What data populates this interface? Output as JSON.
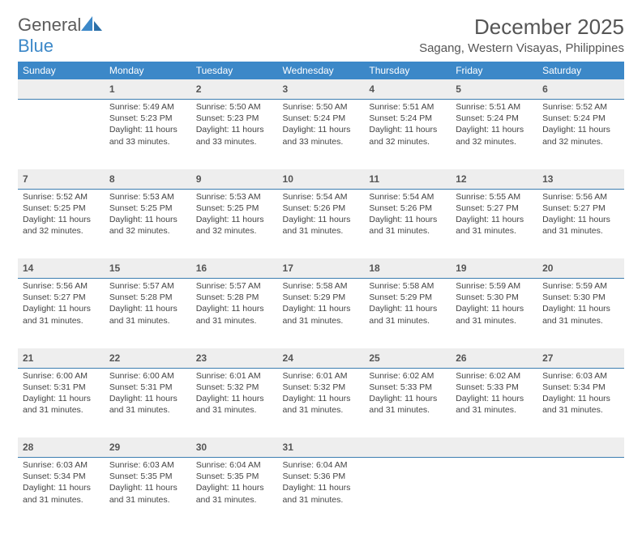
{
  "brand": {
    "part1": "General",
    "part2": "Blue"
  },
  "title": "December 2025",
  "location": "Sagang, Western Visayas, Philippines",
  "colors": {
    "header_bg": "#3c88c8",
    "header_text": "#ffffff",
    "daynum_bg": "#eeeeee",
    "daynum_border": "#3c7db0",
    "body_text": "#444444",
    "title_text": "#555555",
    "page_bg": "#ffffff"
  },
  "weekdays": [
    "Sunday",
    "Monday",
    "Tuesday",
    "Wednesday",
    "Thursday",
    "Friday",
    "Saturday"
  ],
  "weeks": [
    [
      null,
      {
        "n": "1",
        "sr": "Sunrise: 5:49 AM",
        "ss": "Sunset: 5:23 PM",
        "d1": "Daylight: 11 hours",
        "d2": "and 33 minutes."
      },
      {
        "n": "2",
        "sr": "Sunrise: 5:50 AM",
        "ss": "Sunset: 5:23 PM",
        "d1": "Daylight: 11 hours",
        "d2": "and 33 minutes."
      },
      {
        "n": "3",
        "sr": "Sunrise: 5:50 AM",
        "ss": "Sunset: 5:24 PM",
        "d1": "Daylight: 11 hours",
        "d2": "and 33 minutes."
      },
      {
        "n": "4",
        "sr": "Sunrise: 5:51 AM",
        "ss": "Sunset: 5:24 PM",
        "d1": "Daylight: 11 hours",
        "d2": "and 32 minutes."
      },
      {
        "n": "5",
        "sr": "Sunrise: 5:51 AM",
        "ss": "Sunset: 5:24 PM",
        "d1": "Daylight: 11 hours",
        "d2": "and 32 minutes."
      },
      {
        "n": "6",
        "sr": "Sunrise: 5:52 AM",
        "ss": "Sunset: 5:24 PM",
        "d1": "Daylight: 11 hours",
        "d2": "and 32 minutes."
      }
    ],
    [
      {
        "n": "7",
        "sr": "Sunrise: 5:52 AM",
        "ss": "Sunset: 5:25 PM",
        "d1": "Daylight: 11 hours",
        "d2": "and 32 minutes."
      },
      {
        "n": "8",
        "sr": "Sunrise: 5:53 AM",
        "ss": "Sunset: 5:25 PM",
        "d1": "Daylight: 11 hours",
        "d2": "and 32 minutes."
      },
      {
        "n": "9",
        "sr": "Sunrise: 5:53 AM",
        "ss": "Sunset: 5:25 PM",
        "d1": "Daylight: 11 hours",
        "d2": "and 32 minutes."
      },
      {
        "n": "10",
        "sr": "Sunrise: 5:54 AM",
        "ss": "Sunset: 5:26 PM",
        "d1": "Daylight: 11 hours",
        "d2": "and 31 minutes."
      },
      {
        "n": "11",
        "sr": "Sunrise: 5:54 AM",
        "ss": "Sunset: 5:26 PM",
        "d1": "Daylight: 11 hours",
        "d2": "and 31 minutes."
      },
      {
        "n": "12",
        "sr": "Sunrise: 5:55 AM",
        "ss": "Sunset: 5:27 PM",
        "d1": "Daylight: 11 hours",
        "d2": "and 31 minutes."
      },
      {
        "n": "13",
        "sr": "Sunrise: 5:56 AM",
        "ss": "Sunset: 5:27 PM",
        "d1": "Daylight: 11 hours",
        "d2": "and 31 minutes."
      }
    ],
    [
      {
        "n": "14",
        "sr": "Sunrise: 5:56 AM",
        "ss": "Sunset: 5:27 PM",
        "d1": "Daylight: 11 hours",
        "d2": "and 31 minutes."
      },
      {
        "n": "15",
        "sr": "Sunrise: 5:57 AM",
        "ss": "Sunset: 5:28 PM",
        "d1": "Daylight: 11 hours",
        "d2": "and 31 minutes."
      },
      {
        "n": "16",
        "sr": "Sunrise: 5:57 AM",
        "ss": "Sunset: 5:28 PM",
        "d1": "Daylight: 11 hours",
        "d2": "and 31 minutes."
      },
      {
        "n": "17",
        "sr": "Sunrise: 5:58 AM",
        "ss": "Sunset: 5:29 PM",
        "d1": "Daylight: 11 hours",
        "d2": "and 31 minutes."
      },
      {
        "n": "18",
        "sr": "Sunrise: 5:58 AM",
        "ss": "Sunset: 5:29 PM",
        "d1": "Daylight: 11 hours",
        "d2": "and 31 minutes."
      },
      {
        "n": "19",
        "sr": "Sunrise: 5:59 AM",
        "ss": "Sunset: 5:30 PM",
        "d1": "Daylight: 11 hours",
        "d2": "and 31 minutes."
      },
      {
        "n": "20",
        "sr": "Sunrise: 5:59 AM",
        "ss": "Sunset: 5:30 PM",
        "d1": "Daylight: 11 hours",
        "d2": "and 31 minutes."
      }
    ],
    [
      {
        "n": "21",
        "sr": "Sunrise: 6:00 AM",
        "ss": "Sunset: 5:31 PM",
        "d1": "Daylight: 11 hours",
        "d2": "and 31 minutes."
      },
      {
        "n": "22",
        "sr": "Sunrise: 6:00 AM",
        "ss": "Sunset: 5:31 PM",
        "d1": "Daylight: 11 hours",
        "d2": "and 31 minutes."
      },
      {
        "n": "23",
        "sr": "Sunrise: 6:01 AM",
        "ss": "Sunset: 5:32 PM",
        "d1": "Daylight: 11 hours",
        "d2": "and 31 minutes."
      },
      {
        "n": "24",
        "sr": "Sunrise: 6:01 AM",
        "ss": "Sunset: 5:32 PM",
        "d1": "Daylight: 11 hours",
        "d2": "and 31 minutes."
      },
      {
        "n": "25",
        "sr": "Sunrise: 6:02 AM",
        "ss": "Sunset: 5:33 PM",
        "d1": "Daylight: 11 hours",
        "d2": "and 31 minutes."
      },
      {
        "n": "26",
        "sr": "Sunrise: 6:02 AM",
        "ss": "Sunset: 5:33 PM",
        "d1": "Daylight: 11 hours",
        "d2": "and 31 minutes."
      },
      {
        "n": "27",
        "sr": "Sunrise: 6:03 AM",
        "ss": "Sunset: 5:34 PM",
        "d1": "Daylight: 11 hours",
        "d2": "and 31 minutes."
      }
    ],
    [
      {
        "n": "28",
        "sr": "Sunrise: 6:03 AM",
        "ss": "Sunset: 5:34 PM",
        "d1": "Daylight: 11 hours",
        "d2": "and 31 minutes."
      },
      {
        "n": "29",
        "sr": "Sunrise: 6:03 AM",
        "ss": "Sunset: 5:35 PM",
        "d1": "Daylight: 11 hours",
        "d2": "and 31 minutes."
      },
      {
        "n": "30",
        "sr": "Sunrise: 6:04 AM",
        "ss": "Sunset: 5:35 PM",
        "d1": "Daylight: 11 hours",
        "d2": "and 31 minutes."
      },
      {
        "n": "31",
        "sr": "Sunrise: 6:04 AM",
        "ss": "Sunset: 5:36 PM",
        "d1": "Daylight: 11 hours",
        "d2": "and 31 minutes."
      },
      null,
      null,
      null
    ]
  ]
}
